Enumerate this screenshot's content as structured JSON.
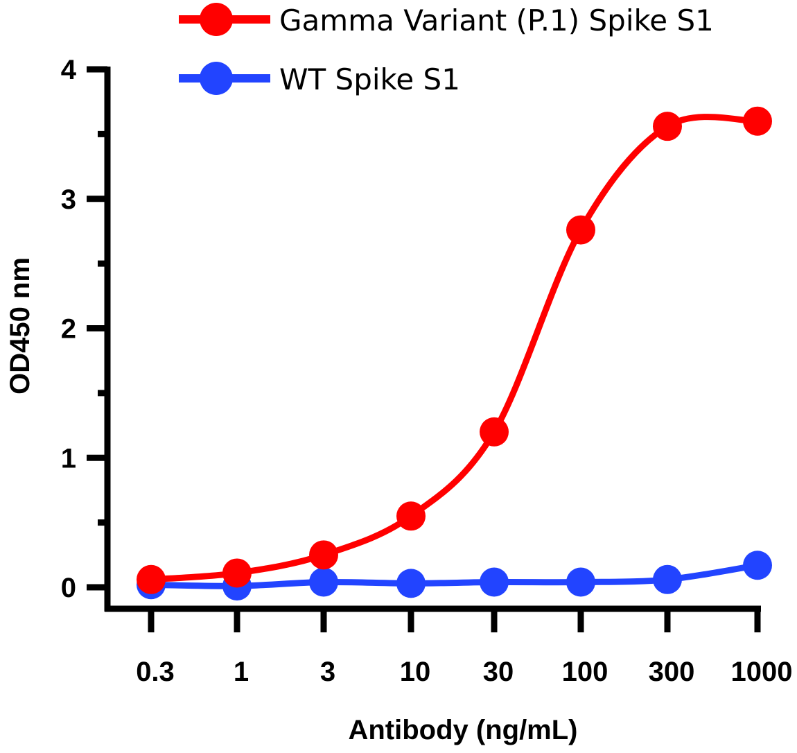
{
  "chart_data": {
    "type": "line",
    "title": "",
    "xlabel": "Antibody (ng/mL)",
    "ylabel": "OD450 nm",
    "x_scale": "log",
    "x": [
      0.3,
      1,
      3,
      10,
      30,
      100,
      300,
      1000
    ],
    "x_tick_labels": [
      "0.3",
      "1",
      "3",
      "10",
      "30",
      "100",
      "300",
      "1000"
    ],
    "y_tick_labels": [
      "0",
      "1",
      "2",
      "3",
      "4"
    ],
    "ylim": [
      0,
      4
    ],
    "grid": false,
    "legend_position": "top",
    "series": [
      {
        "name": "Gamma Variant (P.1) Spike S1",
        "color": "#ff0000",
        "values": [
          0.06,
          0.11,
          0.25,
          0.55,
          1.2,
          2.76,
          3.56,
          3.6
        ]
      },
      {
        "name": "WT Spike S1",
        "color": "#2244ff",
        "values": [
          0.02,
          0.01,
          0.04,
          0.03,
          0.04,
          0.04,
          0.06,
          0.17
        ]
      }
    ]
  }
}
